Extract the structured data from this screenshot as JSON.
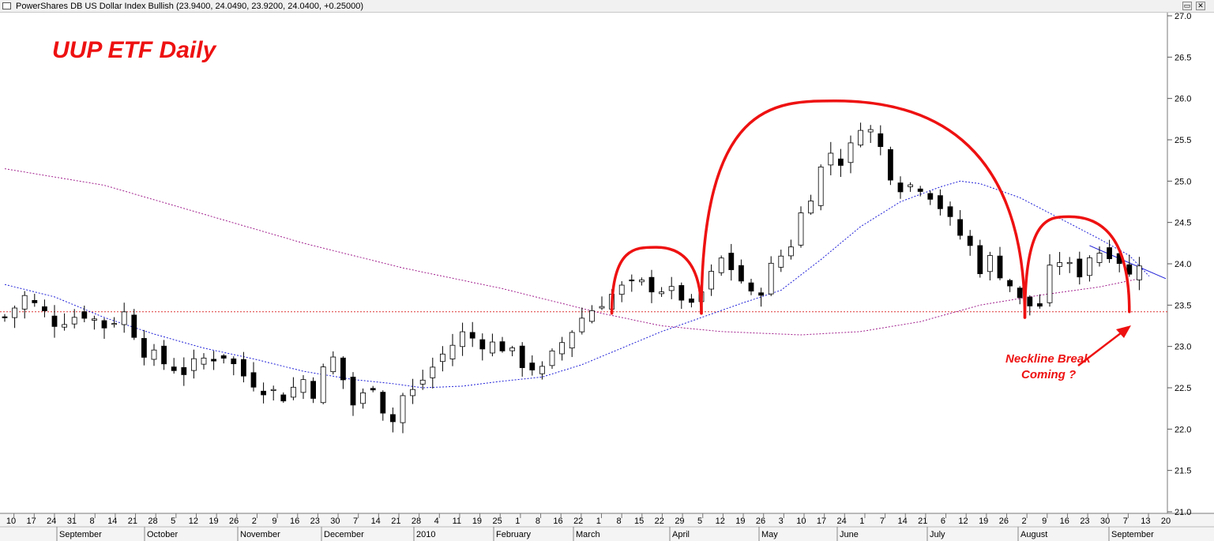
{
  "window": {
    "title": "PowerShares DB US Dollar Index Bullish (23.9400, 24.0490, 23.9200, 24.0400, +0.25000)",
    "restore_glyph": "▭",
    "close_glyph": "✕"
  },
  "annotations": {
    "chart_title": "UUP ETF Daily",
    "neckline_line1": "Neckline Break",
    "neckline_line2": "Coming ?"
  },
  "colors": {
    "annotation": "#ee1111",
    "neckline": "#dd3333",
    "ma_short": "#1e1ed8",
    "ma_long": "#a01e8c",
    "candles": "#000000"
  },
  "chart_data": {
    "type": "candlestick",
    "title": "UUP ETF Daily",
    "ylim": [
      21.0,
      27.0
    ],
    "yticks": [
      "27.0",
      "26.5",
      "26.0",
      "25.5",
      "25.0",
      "24.5",
      "24.0",
      "23.5",
      "23.0",
      "22.5",
      "22.0",
      "21.5",
      "21.0"
    ],
    "day_ticks": [
      "10",
      "17",
      "24",
      "31",
      "8",
      "14",
      "21",
      "28",
      "5",
      "12",
      "19",
      "26",
      "2",
      "9",
      "16",
      "23",
      "30",
      "7",
      "14",
      "21",
      "28",
      "4",
      "11",
      "19",
      "25",
      "1",
      "8",
      "16",
      "22",
      "1",
      "8",
      "15",
      "22",
      "29",
      "5",
      "12",
      "19",
      "26",
      "3",
      "10",
      "17",
      "24",
      "1",
      "7",
      "14",
      "21",
      "6",
      "12",
      "19",
      "26",
      "2",
      "9",
      "16",
      "23",
      "30",
      "7",
      "13",
      "20"
    ],
    "months": [
      "September",
      "October",
      "November",
      "December",
      "2010",
      "February",
      "March",
      "April",
      "May",
      "June",
      "July",
      "August",
      "September"
    ],
    "neckline": 23.42,
    "close_key": [
      [
        0,
        23.35
      ],
      [
        2,
        23.6
      ],
      [
        5,
        23.3
      ],
      [
        8,
        23.4
      ],
      [
        10,
        23.25
      ],
      [
        12,
        23.4
      ],
      [
        14,
        22.95
      ],
      [
        16,
        22.8
      ],
      [
        18,
        22.7
      ],
      [
        20,
        22.85
      ],
      [
        22,
        22.9
      ],
      [
        24,
        22.65
      ],
      [
        26,
        22.5
      ],
      [
        28,
        22.4
      ],
      [
        30,
        22.6
      ],
      [
        31,
        22.45
      ],
      [
        32,
        22.7
      ],
      [
        33,
        22.85
      ],
      [
        34,
        22.6
      ],
      [
        35,
        22.3
      ],
      [
        36,
        22.4
      ],
      [
        37,
        22.55
      ],
      [
        38,
        22.25
      ],
      [
        39,
        22.1
      ],
      [
        40,
        22.4
      ],
      [
        41,
        22.45
      ],
      [
        42,
        22.6
      ],
      [
        44,
        22.9
      ],
      [
        46,
        23.15
      ],
      [
        48,
        23.05
      ],
      [
        50,
        23.0
      ],
      [
        52,
        22.8
      ],
      [
        54,
        22.7
      ],
      [
        56,
        23.05
      ],
      [
        58,
        23.35
      ],
      [
        60,
        23.55
      ],
      [
        62,
        23.7
      ],
      [
        64,
        23.75
      ],
      [
        66,
        23.7
      ],
      [
        68,
        23.6
      ],
      [
        69,
        23.45
      ],
      [
        70,
        23.65
      ],
      [
        72,
        24.05
      ],
      [
        73,
        23.95
      ],
      [
        74,
        23.8
      ],
      [
        75,
        23.6
      ],
      [
        76,
        23.7
      ],
      [
        77,
        23.95
      ],
      [
        78,
        24.1
      ],
      [
        79,
        24.25
      ],
      [
        80,
        24.6
      ],
      [
        81,
        24.85
      ],
      [
        82,
        25.15
      ],
      [
        83,
        25.35
      ],
      [
        84,
        25.25
      ],
      [
        85,
        25.4
      ],
      [
        86,
        25.7
      ],
      [
        87,
        25.6
      ],
      [
        88,
        25.4
      ],
      [
        89,
        25.1
      ],
      [
        90,
        24.95
      ],
      [
        92,
        24.95
      ],
      [
        93,
        24.85
      ],
      [
        94,
        24.7
      ],
      [
        95,
        24.5
      ],
      [
        96,
        24.35
      ],
      [
        97,
        24.2
      ],
      [
        98,
        23.95
      ],
      [
        99,
        24.05
      ],
      [
        100,
        23.9
      ],
      [
        101,
        23.75
      ],
      [
        102,
        23.55
      ],
      [
        103,
        23.5
      ],
      [
        104,
        23.5
      ],
      [
        105,
        23.9
      ],
      [
        106,
        24.05
      ],
      [
        107,
        23.95
      ],
      [
        108,
        23.9
      ],
      [
        109,
        24.1
      ],
      [
        110,
        24.15
      ],
      [
        111,
        24.15
      ],
      [
        112,
        24.05
      ],
      [
        113,
        23.85
      ],
      [
        114,
        24.04
      ]
    ],
    "ma_short_key": [
      [
        0,
        23.75
      ],
      [
        5,
        23.6
      ],
      [
        10,
        23.35
      ],
      [
        15,
        23.15
      ],
      [
        20,
        22.98
      ],
      [
        25,
        22.85
      ],
      [
        30,
        22.7
      ],
      [
        35,
        22.6
      ],
      [
        39,
        22.55
      ],
      [
        42,
        22.5
      ],
      [
        46,
        22.52
      ],
      [
        50,
        22.58
      ],
      [
        54,
        22.63
      ],
      [
        58,
        22.78
      ],
      [
        62,
        22.98
      ],
      [
        66,
        23.18
      ],
      [
        70,
        23.35
      ],
      [
        74,
        23.52
      ],
      [
        78,
        23.68
      ],
      [
        82,
        24.05
      ],
      [
        86,
        24.45
      ],
      [
        90,
        24.75
      ],
      [
        94,
        24.93
      ],
      [
        96,
        25.0
      ],
      [
        98,
        24.97
      ],
      [
        102,
        24.8
      ],
      [
        106,
        24.55
      ],
      [
        110,
        24.3
      ],
      [
        113,
        24.1
      ],
      [
        115,
        23.85
      ]
    ],
    "ma_long_key": [
      [
        0,
        25.15
      ],
      [
        10,
        24.95
      ],
      [
        20,
        24.6
      ],
      [
        30,
        24.25
      ],
      [
        40,
        23.95
      ],
      [
        50,
        23.7
      ],
      [
        60,
        23.4
      ],
      [
        66,
        23.25
      ],
      [
        72,
        23.18
      ],
      [
        80,
        23.14
      ],
      [
        86,
        23.18
      ],
      [
        92,
        23.3
      ],
      [
        98,
        23.5
      ],
      [
        104,
        23.62
      ],
      [
        110,
        23.72
      ],
      [
        114,
        23.82
      ]
    ],
    "arcs": [
      {
        "name": "left-shoulder-1",
        "from": [
          61,
          23.4
        ],
        "peak": [
          65.5,
          24.2
        ],
        "to": [
          70,
          23.4
        ]
      },
      {
        "name": "head",
        "from": [
          70,
          23.4
        ],
        "peak": [
          83.5,
          25.97
        ],
        "to": [
          102.5,
          23.35
        ]
      },
      {
        "name": "right-shoulder",
        "from": [
          102.5,
          23.35
        ],
        "peak": [
          107,
          24.57
        ],
        "to": [
          113,
          23.42
        ]
      }
    ],
    "num_days": 116
  }
}
